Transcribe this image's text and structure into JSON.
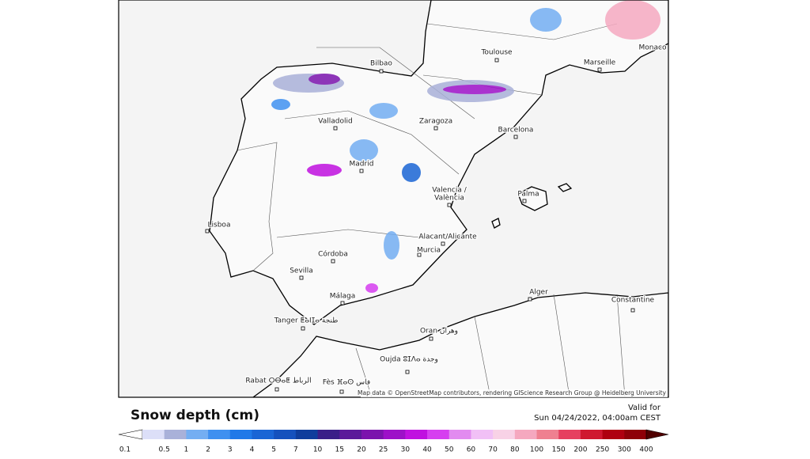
{
  "map": {
    "cities": [
      "Toulouse",
      "Marseille",
      "Monaco",
      "Bilbao",
      "Valladolid",
      "Zaragoza",
      "Barcelona",
      "Madrid",
      "Valencia /",
      "València",
      "Palma",
      "Lisboa",
      "Alacant/Alicante",
      "Murcia",
      "Córdoba",
      "Sevilla",
      "Málaga",
      "Alger",
      "Constantine",
      "Tanger ⵟⴰⵏⵊⴰ طنجة",
      "Oran وهران",
      "Oujda ⵓⵊⴷⴰ وجدة",
      "Rabat ⵔⴱⴰⵟ الرباط",
      "Fès ⴼⴰⵙ فاس"
    ],
    "attribution": "Map data © OpenStreetMap contributors, rendering GIScience Research Group @ Heidelberg University"
  },
  "legend": {
    "title": "Snow depth (cm)",
    "valid_label": "Valid for",
    "valid_time": "Sun 04/24/2022, 04:00am CEST",
    "ticks": [
      0.1,
      0.5,
      1,
      2,
      3,
      4,
      5,
      7,
      10,
      15,
      20,
      25,
      30,
      40,
      50,
      60,
      70,
      80,
      100,
      150,
      200,
      250,
      300,
      400
    ],
    "colors": [
      "#dcdff8",
      "#a9b1d9",
      "#74aef2",
      "#3f90f0",
      "#2079e8",
      "#1a65d5",
      "#1551bd",
      "#0f3d9c",
      "#3a1f88",
      "#5b1a9a",
      "#7b13ad",
      "#9d10c8",
      "#c010e0",
      "#d63ef0",
      "#e28bf0",
      "#f1c0f6",
      "#f8d2e6",
      "#f5a8bf",
      "#ef8090",
      "#e64060",
      "#cf1830",
      "#af0010",
      "#8e0008"
    ],
    "low_color": "#ffffff",
    "high_color": "#500000"
  }
}
